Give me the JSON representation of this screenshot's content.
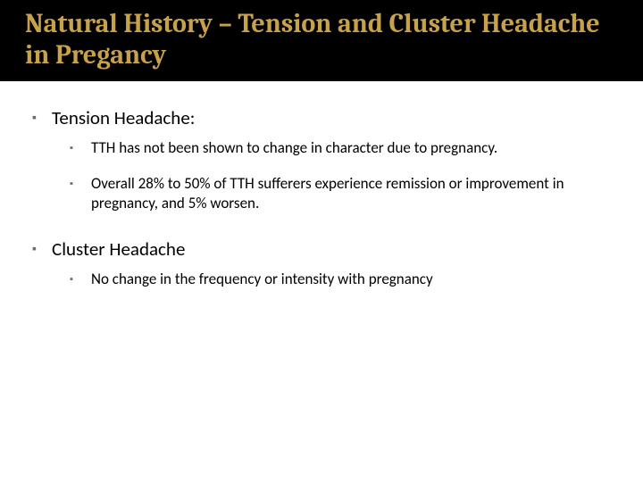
{
  "title": "Natural History – Tension and Cluster Headache in Pregancy",
  "colors": {
    "title_bg": "#000000",
    "title_text": "#c7a24b",
    "body_text": "#000000",
    "bullet": "#6f6f5f",
    "slide_bg": "#ffffff"
  },
  "typography": {
    "title_fontsize": 30,
    "title_weight": 700,
    "lvl1_fontsize": 21,
    "lvl2_fontsize": 17
  },
  "sections": [
    {
      "heading": "Tension Headache:",
      "items": [
        "TTH has not been shown to change in character due to pregnancy.",
        "Overall 28% to 50% of TTH sufferers experience remission or improvement in pregnancy, and 5% worsen."
      ]
    },
    {
      "heading": "Cluster Headache",
      "items": [
        "No change in the frequency or intensity with pregnancy"
      ]
    }
  ]
}
